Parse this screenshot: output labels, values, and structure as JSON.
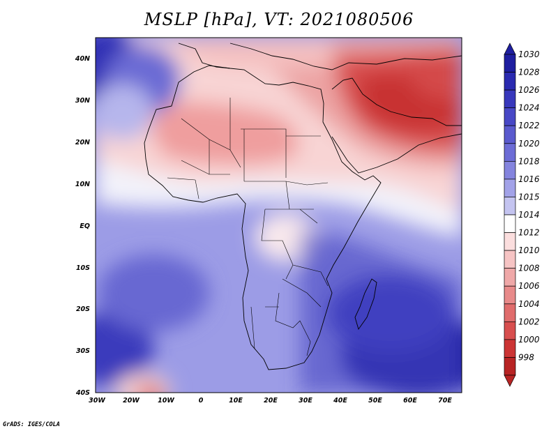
{
  "map": {
    "title": "MSLP [hPa], VT: 2021080506",
    "variable": "Mean sea level pressure",
    "units": "hPa",
    "lat_labels": [
      "40N",
      "30N",
      "20N",
      "10N",
      "EQ",
      "10S",
      "20S",
      "30S",
      "40S"
    ],
    "lon_labels": [
      "30W",
      "20W",
      "10W",
      "0",
      "10E",
      "20E",
      "30E",
      "40E",
      "50E",
      "60E",
      "70E"
    ],
    "colorbar": {
      "levels": [
        "1030",
        "1028",
        "1026",
        "1024",
        "1022",
        "1020",
        "1018",
        "1016",
        "1015",
        "1014",
        "1012",
        "1010",
        "1008",
        "1006",
        "1004",
        "1002",
        "1000",
        "998"
      ],
      "colors": [
        "#1e1ea0",
        "#2a2ab0",
        "#3838bc",
        "#4848c6",
        "#5a5ace",
        "#6c6cd6",
        "#8484de",
        "#a2a2e8",
        "#c4c4f0",
        "#ffffff",
        "#fbdede",
        "#f6c4c4",
        "#efa8a8",
        "#e88a8a",
        "#e06c6c",
        "#d84e4e",
        "#cc3434",
        "#b82424"
      ]
    },
    "credit": "GrADS: IGES/COLA"
  }
}
